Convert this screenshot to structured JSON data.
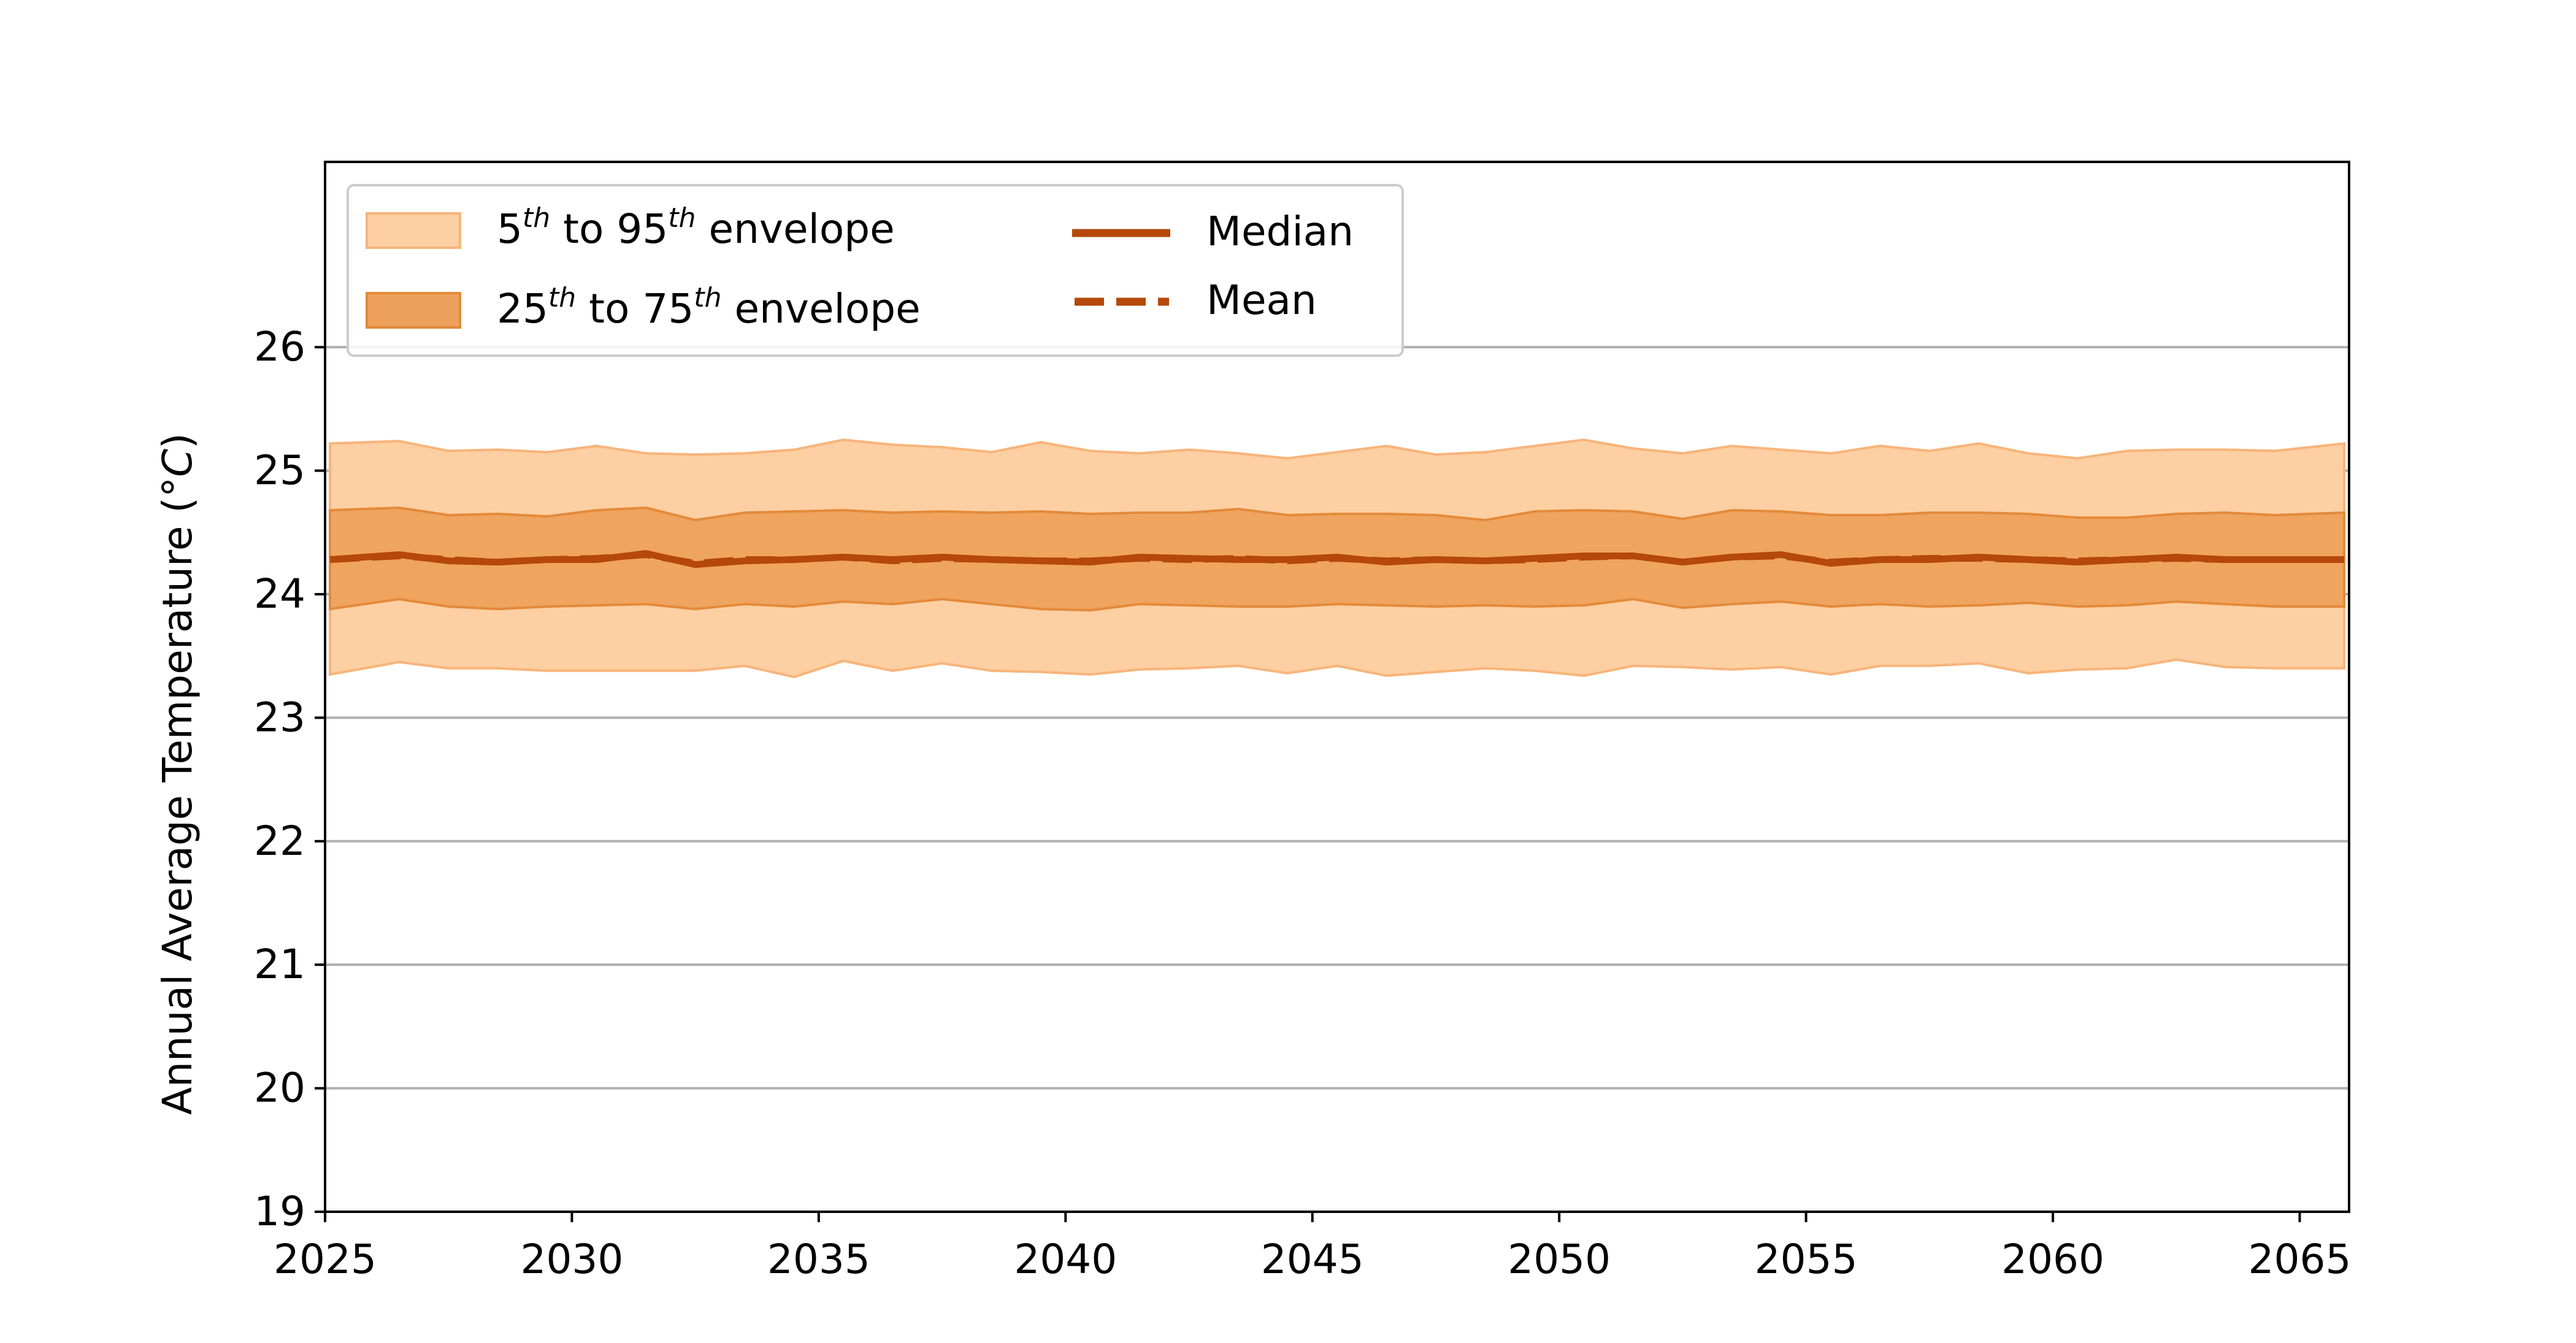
{
  "chart_data": {
    "type": "area",
    "ylabel": "Annual Average Temperature (",
    "ylabel_unit": "°C",
    "ylabel_close": ")",
    "xlim": [
      2025,
      2066
    ],
    "ylim": [
      19,
      27.5
    ],
    "x_ticks": [
      2025,
      2030,
      2035,
      2040,
      2045,
      2050,
      2055,
      2060,
      2065
    ],
    "y_ticks": [
      19,
      20,
      21,
      22,
      23,
      24,
      25,
      26
    ],
    "grid": "horizontal",
    "legend_position": "top-left",
    "colors": {
      "envelope_5_95": "#fdcfa2",
      "envelope_25_75": "#eea15c",
      "median": "#b5480a",
      "mean": "#b5480a"
    },
    "legend": {
      "env95": {
        "a": "5",
        "sa": "th",
        "b": " to 95",
        "sb": "th",
        "c": " envelope"
      },
      "env75": {
        "a": "25",
        "sa": "th",
        "b": " to 75",
        "sb": "th",
        "c": " envelope"
      },
      "median": "Median",
      "mean": "Mean"
    },
    "x": [
      2025.1,
      2026.5,
      2027.5,
      2028.5,
      2029.5,
      2030.5,
      2031.5,
      2032.5,
      2033.5,
      2034.5,
      2035.5,
      2036.5,
      2037.5,
      2038.5,
      2039.5,
      2040.5,
      2041.5,
      2042.5,
      2043.5,
      2044.5,
      2045.5,
      2046.5,
      2047.5,
      2048.5,
      2049.5,
      2050.5,
      2051.5,
      2052.5,
      2053.5,
      2054.5,
      2055.5,
      2056.5,
      2057.5,
      2058.5,
      2059.5,
      2060.5,
      2061.5,
      2062.5,
      2063.5,
      2064.5,
      2065.9
    ],
    "p5": [
      23.35,
      23.45,
      23.4,
      23.4,
      23.38,
      23.38,
      23.38,
      23.38,
      23.42,
      23.33,
      23.46,
      23.38,
      23.44,
      23.38,
      23.37,
      23.35,
      23.39,
      23.4,
      23.42,
      23.36,
      23.42,
      23.34,
      23.37,
      23.4,
      23.38,
      23.34,
      23.42,
      23.41,
      23.39,
      23.41,
      23.35,
      23.42,
      23.42,
      23.44,
      23.36,
      23.39,
      23.4,
      23.47,
      23.41,
      23.4,
      23.4
    ],
    "p25": [
      23.88,
      23.96,
      23.9,
      23.88,
      23.9,
      23.91,
      23.92,
      23.88,
      23.92,
      23.9,
      23.94,
      23.92,
      23.96,
      23.92,
      23.88,
      23.87,
      23.92,
      23.91,
      23.9,
      23.9,
      23.92,
      23.91,
      23.9,
      23.91,
      23.9,
      23.91,
      23.96,
      23.89,
      23.92,
      23.94,
      23.9,
      23.92,
      23.9,
      23.91,
      23.93,
      23.9,
      23.91,
      23.94,
      23.92,
      23.9,
      23.9
    ],
    "median": [
      24.28,
      24.32,
      24.27,
      24.26,
      24.28,
      24.28,
      24.33,
      24.24,
      24.27,
      24.28,
      24.3,
      24.28,
      24.3,
      24.28,
      24.27,
      24.26,
      24.3,
      24.29,
      24.28,
      24.28,
      24.3,
      24.26,
      24.28,
      24.27,
      24.29,
      24.31,
      24.31,
      24.26,
      24.3,
      24.32,
      24.25,
      24.28,
      24.28,
      24.3,
      24.28,
      24.26,
      24.28,
      24.3,
      24.28,
      24.28,
      24.28
    ],
    "mean": [
      24.28,
      24.31,
      24.28,
      24.26,
      24.28,
      24.29,
      24.32,
      24.25,
      24.28,
      24.28,
      24.3,
      24.27,
      24.29,
      24.28,
      24.27,
      24.27,
      24.29,
      24.28,
      24.29,
      24.27,
      24.29,
      24.27,
      24.28,
      24.27,
      24.28,
      24.3,
      24.31,
      24.26,
      24.3,
      24.31,
      24.26,
      24.28,
      24.29,
      24.29,
      24.28,
      24.27,
      24.28,
      24.29,
      24.28,
      24.28,
      24.28
    ],
    "p75": [
      24.68,
      24.7,
      24.64,
      24.65,
      24.63,
      24.68,
      24.7,
      24.6,
      24.66,
      24.67,
      24.68,
      24.66,
      24.67,
      24.66,
      24.67,
      24.65,
      24.66,
      24.66,
      24.69,
      24.64,
      24.65,
      24.65,
      24.64,
      24.6,
      24.67,
      24.68,
      24.67,
      24.61,
      24.68,
      24.67,
      24.64,
      24.64,
      24.66,
      24.66,
      24.65,
      24.62,
      24.62,
      24.65,
      24.66,
      24.64,
      24.66
    ],
    "p95": [
      25.22,
      25.24,
      25.16,
      25.17,
      25.15,
      25.2,
      25.14,
      25.13,
      25.14,
      25.17,
      25.25,
      25.21,
      25.19,
      25.15,
      25.23,
      25.16,
      25.14,
      25.17,
      25.14,
      25.1,
      25.15,
      25.2,
      25.13,
      25.15,
      25.2,
      25.25,
      25.18,
      25.14,
      25.2,
      25.17,
      25.14,
      25.2,
      25.16,
      25.22,
      25.14,
      25.1,
      25.16,
      25.17,
      25.17,
      25.16,
      25.22
    ]
  }
}
